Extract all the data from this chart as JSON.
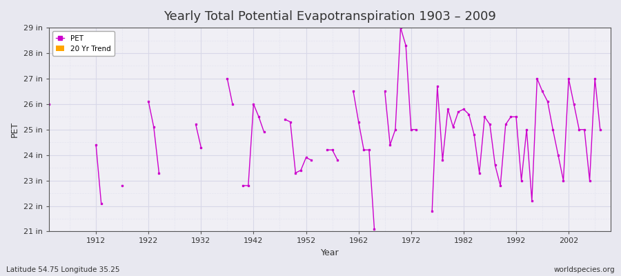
{
  "title": "Yearly Total Potential Evapotranspiration 1903 – 2009",
  "xlabel": "Year",
  "ylabel": "PET",
  "bottom_left_label": "Latitude 54.75 Longitude 35.25",
  "bottom_right_label": "worldspecies.org",
  "pet_color": "#cc00cc",
  "trend_color": "#ffa500",
  "bg_color": "#e8e8f0",
  "plot_bg_color": "#f0eff5",
  "grid_major_color": "#d8d8e8",
  "grid_minor_color": "#e4e4f0",
  "ylim": [
    21,
    29
  ],
  "ytick_labels": [
    "21 in",
    "22 in",
    "23 in",
    "24 in",
    "25 in",
    "26 in",
    "27 in",
    "28 in",
    "29 in"
  ],
  "ytick_values": [
    21,
    22,
    23,
    24,
    25,
    26,
    27,
    28,
    29
  ],
  "years": [
    1903,
    1912,
    1913,
    1917,
    1922,
    1923,
    1924,
    1931,
    1932,
    1937,
    1938,
    1940,
    1941,
    1942,
    1943,
    1944,
    1948,
    1949,
    1950,
    1951,
    1952,
    1953,
    1956,
    1957,
    1958,
    1961,
    1962,
    1963,
    1964,
    1965,
    1967,
    1968,
    1969,
    1970,
    1971,
    1972,
    1973,
    1976,
    1977,
    1978,
    1979,
    1980,
    1981,
    1982,
    1983,
    1984,
    1985,
    1986,
    1987,
    1988,
    1989,
    1990,
    1991,
    1992,
    1993,
    1994,
    1995,
    1996,
    1997,
    1998,
    1999,
    2000,
    2001,
    2002,
    2003,
    2004,
    2005,
    2006,
    2007,
    2008
  ],
  "values": [
    26.0,
    24.4,
    22.1,
    22.8,
    26.1,
    25.1,
    23.3,
    25.2,
    24.3,
    27.0,
    26.0,
    22.8,
    22.8,
    26.0,
    25.5,
    24.9,
    25.4,
    25.3,
    23.3,
    23.4,
    23.9,
    23.8,
    24.2,
    24.2,
    23.8,
    26.5,
    25.3,
    24.2,
    24.2,
    21.1,
    26.5,
    24.4,
    25.0,
    29.0,
    28.3,
    25.0,
    25.0,
    21.8,
    26.7,
    23.8,
    25.8,
    25.1,
    25.7,
    25.8,
    25.6,
    24.8,
    23.3,
    25.5,
    25.2,
    23.6,
    22.8,
    25.2,
    25.5,
    25.5,
    23.0,
    25.0,
    22.2,
    27.0,
    26.5,
    26.1,
    25.0,
    24.0,
    23.0,
    27.0,
    26.0,
    25.0,
    25.0,
    23.0,
    27.0,
    25.0
  ],
  "xtick_years": [
    1912,
    1922,
    1932,
    1942,
    1952,
    1962,
    1972,
    1982,
    1992,
    2002
  ]
}
